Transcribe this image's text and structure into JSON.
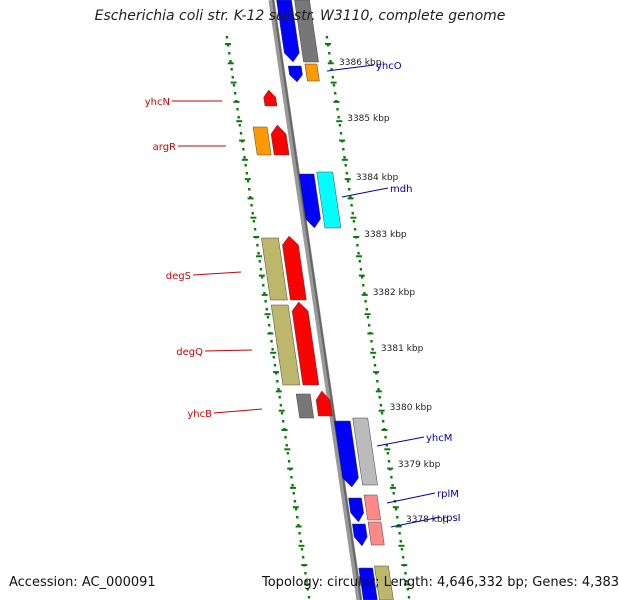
{
  "title": "Escherichia coli str. K-12 substr. W3110, complete genome",
  "footer": {
    "accession": "Accession: AC_000091",
    "summary": "Topology: circular; Length: 4,646,332 bp; Genes: 4,383"
  },
  "colors": {
    "backbone": "#888888",
    "tick": "#117711",
    "left_label": "#cc0000",
    "right_label": "#0000aa",
    "red": "#ff0000",
    "orange": "#ff9900",
    "olive": "#bdb76b",
    "gray": "#777777",
    "blue": "#0000ff",
    "cyan": "#00ffff",
    "silver": "#bbbbbb",
    "salmon": "#ff8888"
  },
  "scale_labels": [
    "3386 kbp",
    "3385 kbp",
    "3384 kbp",
    "3383 kbp",
    "3382 kbp",
    "3381 kbp",
    "3380 kbp",
    "3379 kbp",
    "3378 kbp"
  ],
  "left_genes": [
    "yhcN",
    "argR",
    "degS",
    "degQ",
    "yhcB"
  ],
  "right_genes": [
    "yhcO",
    "mdh",
    "yhcM",
    "rplM",
    "rpsI"
  ]
}
